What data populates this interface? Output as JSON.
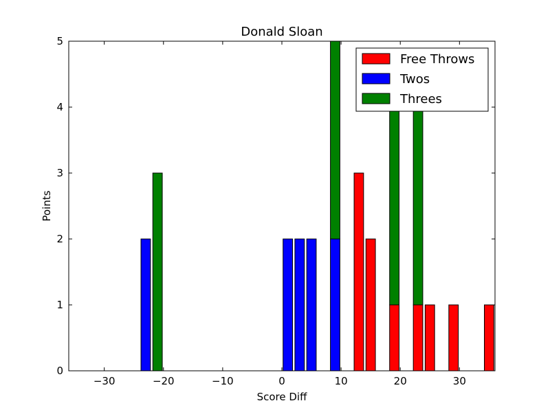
{
  "chart_data": {
    "type": "bar",
    "title": "Donald Sloan",
    "xlabel": "Score Diff",
    "ylabel": "Points",
    "xlim": [
      -36,
      36
    ],
    "ylim": [
      0,
      5
    ],
    "xticks": [
      -30,
      -20,
      -10,
      0,
      10,
      20,
      30
    ],
    "xtick_labels": [
      "−30",
      "−20",
      "−10",
      "0",
      "10",
      "20",
      "30"
    ],
    "yticks": [
      0,
      1,
      2,
      3,
      4,
      5
    ],
    "ytick_labels": [
      "0",
      "1",
      "2",
      "3",
      "4",
      "5"
    ],
    "bin_width": 2,
    "bar_width": 1.6,
    "x": [
      -35,
      -33,
      -31,
      -29,
      -27,
      -25,
      -23,
      -21,
      -19,
      -17,
      -15,
      -13,
      -11,
      -9,
      -7,
      -5,
      -3,
      -1,
      1,
      3,
      5,
      7,
      9,
      11,
      13,
      15,
      17,
      19,
      21,
      23,
      25,
      27,
      29,
      31,
      33,
      35
    ],
    "series": [
      {
        "name": "Free Throws",
        "color": "#ff0000",
        "values": [
          0,
          0,
          0,
          0,
          0,
          0,
          0,
          0,
          0,
          0,
          0,
          0,
          0,
          0,
          0,
          0,
          0,
          0,
          0,
          0,
          0,
          0,
          0,
          0,
          3,
          2,
          0,
          1,
          0,
          1,
          1,
          0,
          1,
          0,
          0,
          1
        ]
      },
      {
        "name": "Twos",
        "color": "#0000ff",
        "values": [
          0,
          0,
          0,
          0,
          0,
          0,
          2,
          0,
          0,
          0,
          0,
          0,
          0,
          0,
          0,
          0,
          0,
          0,
          2,
          2,
          2,
          0,
          2,
          0,
          0,
          0,
          0,
          0,
          0,
          0,
          0,
          0,
          0,
          0,
          0,
          0
        ]
      },
      {
        "name": "Threes",
        "color": "#008000",
        "values": [
          0,
          0,
          0,
          0,
          0,
          0,
          0,
          3,
          0,
          0,
          0,
          0,
          0,
          0,
          0,
          0,
          0,
          0,
          0,
          0,
          0,
          0,
          3,
          0,
          0,
          0,
          0,
          3,
          0,
          3,
          0,
          0,
          0,
          0,
          0,
          0
        ]
      }
    ],
    "legend": {
      "position": "top-right",
      "entries": [
        "Free Throws",
        "Twos",
        "Threes"
      ]
    },
    "grid": false
  }
}
